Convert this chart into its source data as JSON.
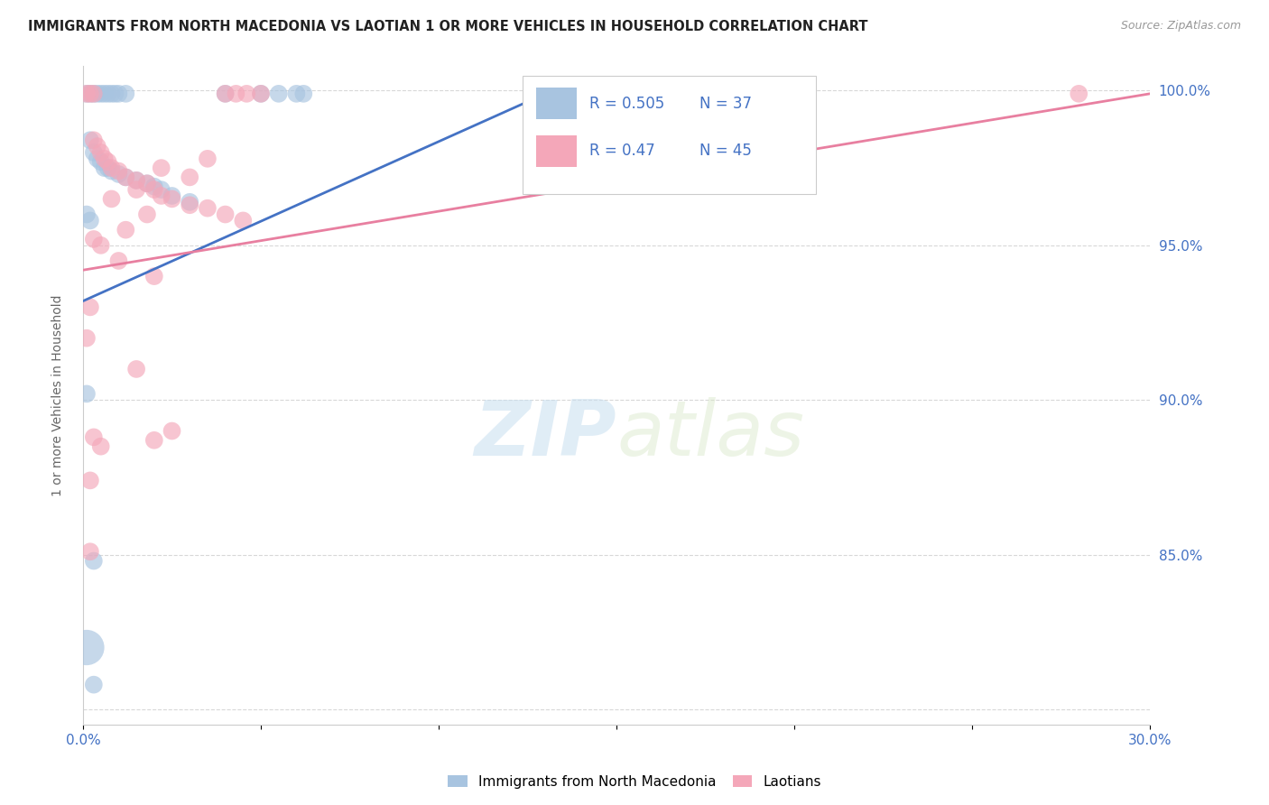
{
  "title": "IMMIGRANTS FROM NORTH MACEDONIA VS LAOTIAN 1 OR MORE VEHICLES IN HOUSEHOLD CORRELATION CHART",
  "source": "Source: ZipAtlas.com",
  "ylabel": "1 or more Vehicles in Household",
  "xlim": [
    0.0,
    0.3
  ],
  "ylim": [
    0.795,
    1.008
  ],
  "blue_color": "#a8c4e0",
  "pink_color": "#f4a7b9",
  "blue_line_color": "#4472c4",
  "pink_line_color": "#e87fa0",
  "background_color": "#ffffff",
  "grid_color": "#d8d8d8",
  "blue_scatter": [
    [
      0.001,
      0.999
    ],
    [
      0.002,
      0.999
    ],
    [
      0.003,
      0.999
    ],
    [
      0.004,
      0.999
    ],
    [
      0.005,
      0.999
    ],
    [
      0.006,
      0.999
    ],
    [
      0.007,
      0.999
    ],
    [
      0.008,
      0.999
    ],
    [
      0.009,
      0.999
    ],
    [
      0.01,
      0.999
    ],
    [
      0.012,
      0.999
    ],
    [
      0.04,
      0.999
    ],
    [
      0.05,
      0.999
    ],
    [
      0.055,
      0.999
    ],
    [
      0.06,
      0.999
    ],
    [
      0.062,
      0.999
    ],
    [
      0.002,
      0.984
    ],
    [
      0.003,
      0.98
    ],
    [
      0.004,
      0.978
    ],
    [
      0.005,
      0.977
    ],
    [
      0.006,
      0.975
    ],
    [
      0.007,
      0.975
    ],
    [
      0.008,
      0.974
    ],
    [
      0.01,
      0.973
    ],
    [
      0.012,
      0.972
    ],
    [
      0.015,
      0.971
    ],
    [
      0.018,
      0.97
    ],
    [
      0.02,
      0.969
    ],
    [
      0.022,
      0.968
    ],
    [
      0.025,
      0.966
    ],
    [
      0.03,
      0.964
    ],
    [
      0.001,
      0.96
    ],
    [
      0.002,
      0.958
    ],
    [
      0.001,
      0.902
    ],
    [
      0.003,
      0.848
    ],
    [
      0.001,
      0.82
    ],
    [
      0.003,
      0.808
    ]
  ],
  "pink_scatter": [
    [
      0.001,
      0.999
    ],
    [
      0.002,
      0.999
    ],
    [
      0.003,
      0.999
    ],
    [
      0.04,
      0.999
    ],
    [
      0.043,
      0.999
    ],
    [
      0.046,
      0.999
    ],
    [
      0.05,
      0.999
    ],
    [
      0.28,
      0.999
    ],
    [
      0.003,
      0.984
    ],
    [
      0.004,
      0.982
    ],
    [
      0.005,
      0.98
    ],
    [
      0.006,
      0.978
    ],
    [
      0.007,
      0.977
    ],
    [
      0.008,
      0.975
    ],
    [
      0.01,
      0.974
    ],
    [
      0.012,
      0.972
    ],
    [
      0.015,
      0.971
    ],
    [
      0.018,
      0.97
    ],
    [
      0.02,
      0.968
    ],
    [
      0.022,
      0.966
    ],
    [
      0.025,
      0.965
    ],
    [
      0.03,
      0.963
    ],
    [
      0.035,
      0.962
    ],
    [
      0.04,
      0.96
    ],
    [
      0.045,
      0.958
    ],
    [
      0.003,
      0.952
    ],
    [
      0.005,
      0.95
    ],
    [
      0.01,
      0.945
    ],
    [
      0.02,
      0.94
    ],
    [
      0.002,
      0.93
    ],
    [
      0.015,
      0.91
    ],
    [
      0.003,
      0.888
    ],
    [
      0.005,
      0.885
    ],
    [
      0.002,
      0.874
    ],
    [
      0.002,
      0.851
    ],
    [
      0.02,
      0.887
    ],
    [
      0.025,
      0.89
    ],
    [
      0.001,
      0.92
    ],
    [
      0.012,
      0.955
    ],
    [
      0.008,
      0.965
    ],
    [
      0.018,
      0.96
    ],
    [
      0.03,
      0.972
    ],
    [
      0.015,
      0.968
    ],
    [
      0.022,
      0.975
    ],
    [
      0.035,
      0.978
    ]
  ],
  "blue_sizes_default": 200,
  "pink_sizes_default": 200,
  "blue_large_size": 800,
  "blue_large_idx": 35,
  "watermark_zip": "ZIP",
  "watermark_atlas": "atlas",
  "legend_label_blue": "Immigrants from North Macedonia",
  "legend_label_pink": "Laotians",
  "R_blue": 0.505,
  "N_blue": 37,
  "R_pink": 0.47,
  "N_pink": 45
}
